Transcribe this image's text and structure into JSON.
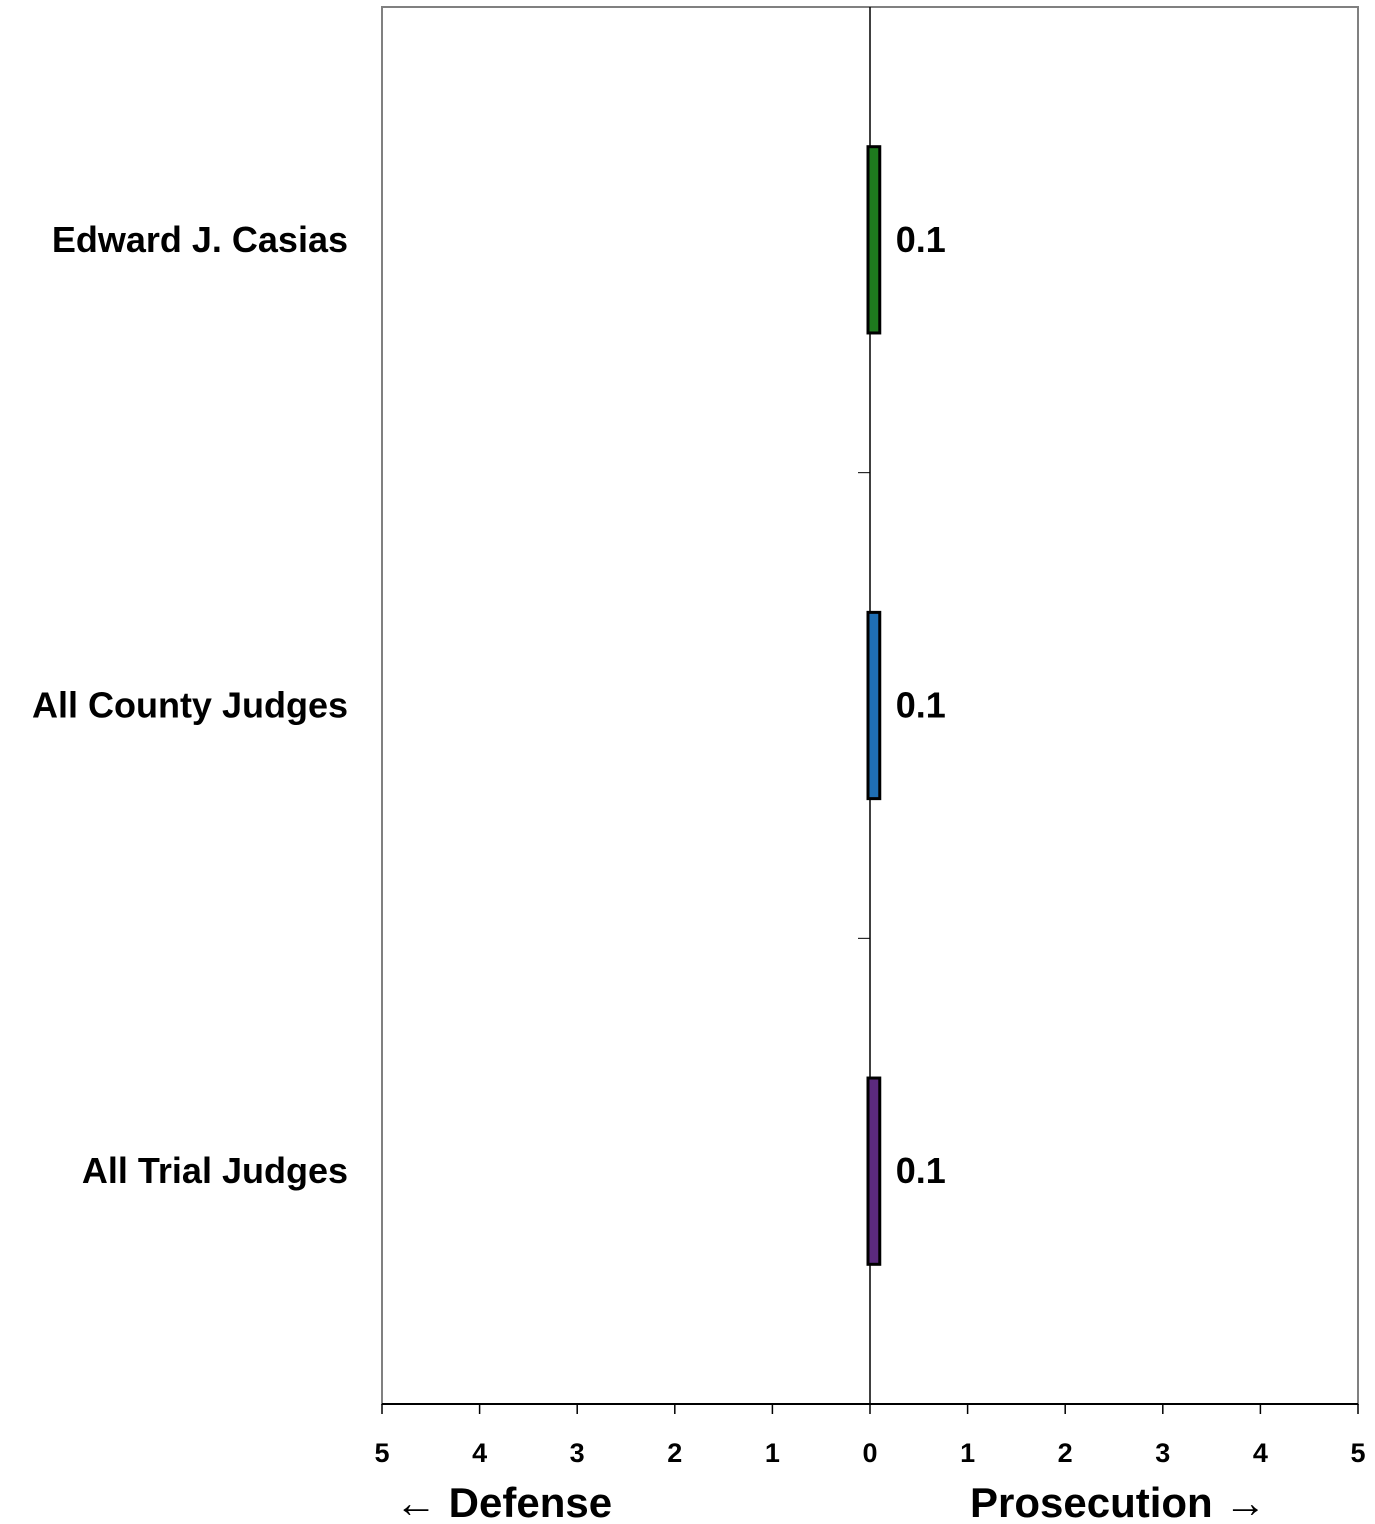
{
  "chart_data": {
    "type": "bar",
    "orientation": "horizontal",
    "categories": [
      "Edward J. Casias",
      "All County Judges",
      "All Trial Judges"
    ],
    "values": [
      0.1,
      0.1,
      0.1
    ],
    "data_labels": [
      "0.1",
      "0.1",
      "0.1"
    ],
    "colors": [
      "#1e7a1e",
      "#1f6fb5",
      "#5b2a7e"
    ],
    "xlim": [
      -5,
      5
    ],
    "x_ticks": [
      -5,
      -4,
      -3,
      -2,
      -1,
      0,
      1,
      2,
      3,
      4,
      5
    ],
    "x_tick_labels": [
      "5",
      "4",
      "3",
      "2",
      "1",
      "0",
      "1",
      "2",
      "3",
      "4",
      "5"
    ],
    "left_direction_label": "← Defense",
    "right_direction_label": "Prosecution →",
    "grid": false,
    "legend": "none",
    "title": ""
  }
}
